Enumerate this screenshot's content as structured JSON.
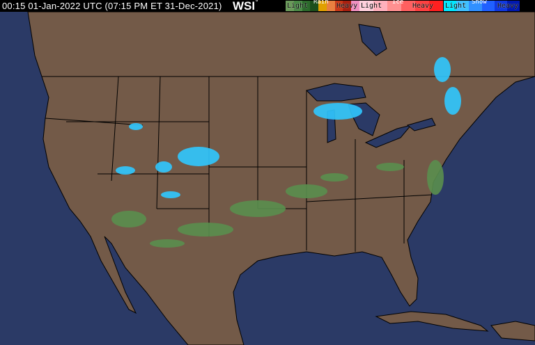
{
  "header": {
    "timestamp": "00:15 01-Jan-2022 UTC  (07:15 PM ET 31-Dec-2021)",
    "logo": "WSI"
  },
  "legend": {
    "rain": {
      "title": "Rain",
      "light": "Light",
      "heavy": "Heavy",
      "colors": [
        "#6a9a5a",
        "#4a8a46",
        "#2c6a2c",
        "#1c4e1c",
        "#e0a000",
        "#e88040",
        "#c83818",
        "#a82010",
        "#f090c0"
      ]
    },
    "ice": {
      "title": "Ice",
      "light": "Light",
      "heavy": "Heavy",
      "colors": [
        "#ffd0dc",
        "#ffb0bc",
        "#ff9090",
        "#ff6060",
        "#ff4040",
        "#ff2020"
      ]
    },
    "snow": {
      "title": "Snow",
      "light": "Light",
      "heavy": "Heavy",
      "colors": [
        "#00e8ff",
        "#40c0ff",
        "#3090ff",
        "#2060ff",
        "#1038e0",
        "#0018b0"
      ]
    }
  },
  "map": {
    "land": "#735a48",
    "water": "#2b3a66",
    "borders": "#000000"
  }
}
